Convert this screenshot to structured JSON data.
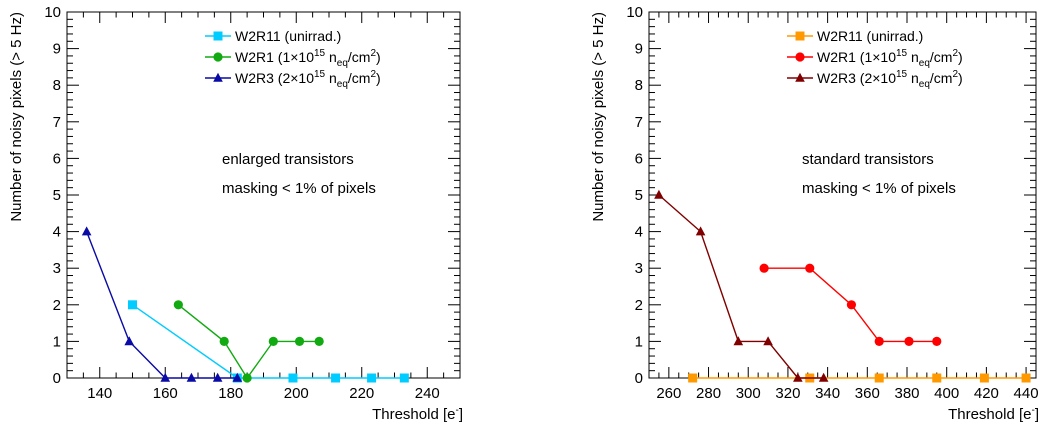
{
  "chart_data": [
    {
      "type": "line",
      "title": "",
      "xlabel": "Threshold [e",
      "xlabel_sup": "-",
      "xlabel_close": "]",
      "ylabel": "Number of noisy pixels (> 5 Hz)",
      "xlim": [
        130,
        250
      ],
      "ylim": [
        0,
        10
      ],
      "xticks": [
        140,
        160,
        180,
        200,
        220,
        240
      ],
      "yticks": [
        0,
        1,
        2,
        3,
        4,
        5,
        6,
        7,
        8,
        9,
        10
      ],
      "annotations": [
        "enlarged transistors",
        "masking < 1% of pixels"
      ],
      "legend_position": "top-right",
      "series": [
        {
          "name": "W2R11 (unirrad.)",
          "legend_parts": [
            [
              "W2R11 (unirrad.)",
              "n"
            ]
          ],
          "color": "#00ccff",
          "marker": "square",
          "x": [
            150,
            182,
            199,
            212,
            223,
            233
          ],
          "y": [
            2,
            0,
            0,
            0,
            0,
            0
          ]
        },
        {
          "name": "W2R1 (1×10^15 n_eq/cm^2)",
          "legend_parts": [
            [
              "W2R1 (1×10",
              "n"
            ],
            [
              "15",
              "sup"
            ],
            [
              " n",
              "n"
            ],
            [
              "eq",
              "sub"
            ],
            [
              "/cm",
              "n"
            ],
            [
              "2",
              "sup"
            ],
            [
              ")",
              "n"
            ]
          ],
          "color": "#11aa11",
          "marker": "circle",
          "x": [
            164,
            178,
            185,
            193,
            201,
            207
          ],
          "y": [
            2,
            1,
            0,
            1,
            1,
            1
          ]
        },
        {
          "name": "W2R3 (2×10^15 n_eq/cm^2)",
          "legend_parts": [
            [
              "W2R3 (2×10",
              "n"
            ],
            [
              "15",
              "sup"
            ],
            [
              " n",
              "n"
            ],
            [
              "eq",
              "sub"
            ],
            [
              "/cm",
              "n"
            ],
            [
              "2",
              "sup"
            ],
            [
              ")",
              "n"
            ]
          ],
          "color": "#0a0aa6",
          "marker": "triangle",
          "x": [
            136,
            149,
            160,
            168,
            176,
            182
          ],
          "y": [
            4,
            1,
            0,
            0,
            0,
            0
          ]
        }
      ]
    },
    {
      "type": "line",
      "title": "",
      "xlabel": "Threshold [e",
      "xlabel_sup": "-",
      "xlabel_close": "]",
      "ylabel": "Number of noisy pixels (> 5 Hz)",
      "xlim": [
        250,
        445
      ],
      "ylim": [
        0,
        10
      ],
      "xticks": [
        260,
        280,
        300,
        320,
        340,
        360,
        380,
        400,
        420,
        440
      ],
      "yticks": [
        0,
        1,
        2,
        3,
        4,
        5,
        6,
        7,
        8,
        9,
        10
      ],
      "annotations": [
        "standard transistors",
        "masking < 1% of pixels"
      ],
      "legend_position": "top-right",
      "series": [
        {
          "name": "W2R11 (unirrad.)",
          "legend_parts": [
            [
              "W2R11 (unirrad.)",
              "n"
            ]
          ],
          "color": "#ff9900",
          "marker": "square",
          "x": [
            272,
            331,
            366,
            395,
            419,
            440
          ],
          "y": [
            0,
            0,
            0,
            0,
            0,
            0
          ]
        },
        {
          "name": "W2R1 (1×10^15 n_eq/cm^2)",
          "legend_parts": [
            [
              "W2R1 (1×10",
              "n"
            ],
            [
              "15",
              "sup"
            ],
            [
              " n",
              "n"
            ],
            [
              "eq",
              "sub"
            ],
            [
              "/cm",
              "n"
            ],
            [
              "2",
              "sup"
            ],
            [
              ")",
              "n"
            ]
          ],
          "color": "#ff0000",
          "marker": "circle",
          "x": [
            308,
            331,
            352,
            366,
            381,
            395
          ],
          "y": [
            3,
            3,
            2,
            1,
            1,
            1
          ]
        },
        {
          "name": "W2R3 (2×10^15 n_eq/cm^2)",
          "legend_parts": [
            [
              "W2R3 (2×10",
              "n"
            ],
            [
              "15",
              "sup"
            ],
            [
              " n",
              "n"
            ],
            [
              "eq",
              "sub"
            ],
            [
              "/cm",
              "n"
            ],
            [
              "2",
              "sup"
            ],
            [
              ")",
              "n"
            ]
          ],
          "color": "#800000",
          "marker": "triangle",
          "x": [
            255,
            276,
            295,
            310,
            325,
            338
          ],
          "y": [
            5,
            4,
            1,
            1,
            0,
            0
          ]
        }
      ]
    }
  ]
}
